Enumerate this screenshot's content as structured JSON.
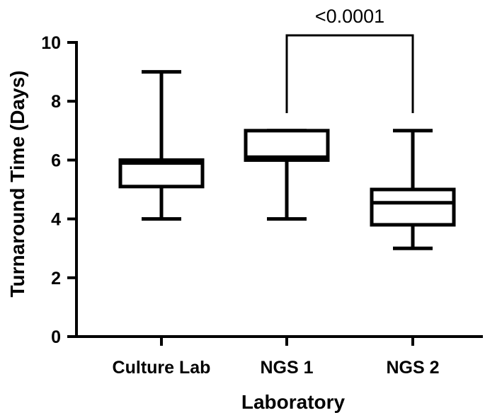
{
  "chart_data": {
    "type": "box",
    "xlabel": "Laboratory",
    "ylabel": "Turnaround Time (Days)",
    "ylim": [
      0,
      10
    ],
    "yticks": [
      0,
      2,
      4,
      6,
      8,
      10
    ],
    "categories": [
      "Culture Lab",
      "NGS 1",
      "NGS 2"
    ],
    "boxes": [
      {
        "category": "Culture Lab",
        "min": 4,
        "q1": 5.1,
        "median": 5.9,
        "q3": 6.0,
        "max": 9
      },
      {
        "category": "NGS 1",
        "min": 4,
        "q1": 6.0,
        "median": 6.1,
        "q3": 7.0,
        "max": 7
      },
      {
        "category": "NGS 2",
        "min": 3,
        "q1": 3.8,
        "median": 4.55,
        "q3": 5.0,
        "max": 7
      }
    ],
    "annotations": [
      {
        "type": "significance",
        "from": "NGS 1",
        "to": "NGS 2",
        "label": "<0.0001"
      }
    ],
    "grid": false,
    "legend": "none"
  }
}
